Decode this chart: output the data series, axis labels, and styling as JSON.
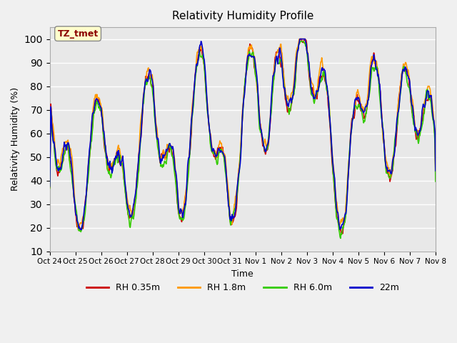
{
  "title": "Relativity Humidity Profile",
  "ylabel": "Relativity Humidity (%)",
  "xlabel": "Time",
  "ylim": [
    10,
    105
  ],
  "yticks": [
    10,
    20,
    30,
    40,
    50,
    60,
    70,
    80,
    90,
    100
  ],
  "colors": {
    "RH 0.35m": "#cc0000",
    "RH 1.8m": "#ff9900",
    "RH 6.0m": "#33cc00",
    "22m": "#0000cc"
  },
  "legend_labels": [
    "RH 0.35m",
    "RH 1.8m",
    "RH 6.0m",
    "22m"
  ],
  "xtick_labels": [
    "Oct 24",
    "Oct 25",
    "Oct 26",
    "Oct 27",
    "Oct 28",
    "Oct 29",
    "Oct 30",
    "Oct 31",
    "Nov 1",
    "Nov 2",
    "Nov 3",
    "Nov 4",
    "Nov 5",
    "Nov 6",
    "Nov 7",
    "Nov 8"
  ],
  "annotation_text": "TZ_tmet",
  "annotation_color": "#8b0000",
  "background_color": "#e8e8e8",
  "plot_bg_color": "#e8e8e8",
  "grid_color": "#ffffff",
  "line_width": 1.2
}
